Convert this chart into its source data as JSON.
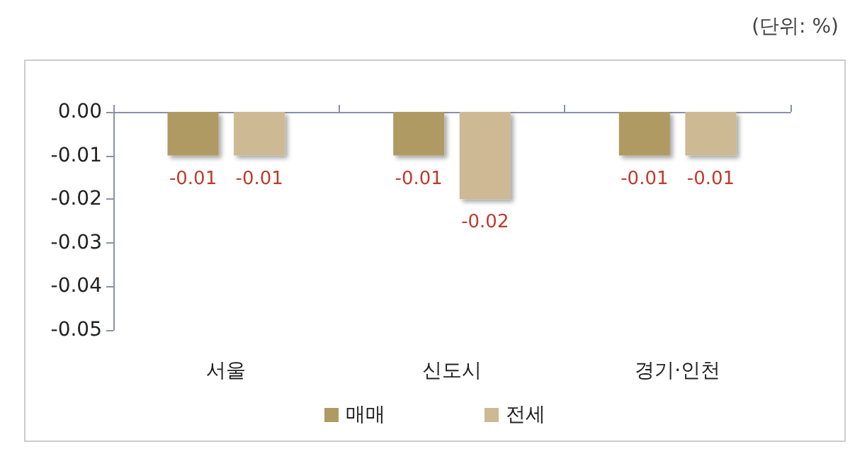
{
  "chart_data": {
    "type": "bar",
    "categories": [
      "서울",
      "신도시",
      "경기·인천"
    ],
    "series": [
      {
        "name": "매매",
        "color": "#b09a64",
        "values": [
          -0.01,
          -0.01,
          -0.01
        ]
      },
      {
        "name": "전세",
        "color": "#cdb993",
        "values": [
          -0.01,
          -0.02,
          -0.01
        ]
      }
    ],
    "ylim": [
      -0.05,
      0
    ],
    "yticks": [
      {
        "value": 0,
        "label": "0.00"
      },
      {
        "value": -0.01,
        "label": "-0.01"
      },
      {
        "value": -0.02,
        "label": "-0.02"
      },
      {
        "value": -0.03,
        "label": "-0.03"
      },
      {
        "value": -0.04,
        "label": "-0.04"
      },
      {
        "value": -0.05,
        "label": "-0.05"
      }
    ],
    "data_labels": true,
    "grid": false,
    "legend": "bottom",
    "annotations": [
      "(단위: %)"
    ]
  }
}
